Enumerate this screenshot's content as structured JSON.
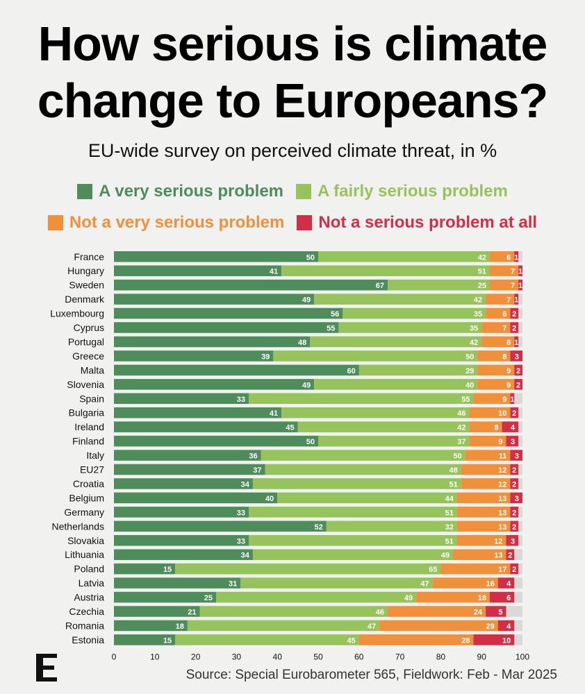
{
  "title_line1": "How serious is climate",
  "title_line2": "change to Europeans?",
  "subtitle": "EU-wide survey on perceived climate threat, in %",
  "legend": [
    {
      "label": "A very serious problem",
      "color": "#4e8c5c"
    },
    {
      "label": "A fairly serious problem",
      "color": "#96c35c"
    },
    {
      "label": "Not a very serious problem",
      "color": "#f0903a"
    },
    {
      "label": "Not a serious problem at all",
      "color": "#d22e47"
    }
  ],
  "source": "Source: Special Eurobarometer 565, Fieldwork: Feb - Mar 2025",
  "chart_data": {
    "type": "bar",
    "orientation": "horizontal",
    "stacked": true,
    "title": "How serious is climate change to Europeans?",
    "subtitle": "EU-wide survey on perceived climate threat, in %",
    "xlim": [
      0,
      100
    ],
    "xticks": [
      0,
      10,
      20,
      30,
      40,
      50,
      60,
      70,
      80,
      90,
      100
    ],
    "grid": false,
    "legend_position": "top",
    "categories": [
      "France",
      "Hungary",
      "Sweden",
      "Denmark",
      "Luxembourg",
      "Cyprus",
      "Portugal",
      "Greece",
      "Malta",
      "Slovenia",
      "Spain",
      "Bulgaria",
      "Ireland",
      "Finland",
      "Italy",
      "EU27",
      "Croatia",
      "Belgium",
      "Germany",
      "Netherlands",
      "Slovakia",
      "Lithuania",
      "Poland",
      "Latvia",
      "Austria",
      "Czechia",
      "Romania",
      "Estonia"
    ],
    "series": [
      {
        "name": "A very serious problem",
        "color": "#4e8c5c",
        "values": [
          50,
          41,
          67,
          49,
          56,
          55,
          48,
          39,
          60,
          49,
          33,
          41,
          45,
          50,
          36,
          37,
          34,
          40,
          33,
          52,
          33,
          34,
          15,
          31,
          25,
          21,
          18,
          15
        ]
      },
      {
        "name": "A fairly serious problem",
        "color": "#96c35c",
        "values": [
          42,
          51,
          25,
          42,
          35,
          35,
          42,
          50,
          29,
          40,
          55,
          46,
          42,
          37,
          50,
          48,
          51,
          44,
          51,
          32,
          51,
          49,
          65,
          47,
          49,
          46,
          47,
          45
        ]
      },
      {
        "name": "Not a very serious problem",
        "color": "#f0903a",
        "values": [
          6,
          7,
          7,
          7,
          6,
          7,
          8,
          8,
          9,
          9,
          9,
          10,
          8,
          9,
          11,
          12,
          12,
          13,
          13,
          13,
          12,
          13,
          17,
          16,
          18,
          24,
          29,
          28
        ]
      },
      {
        "name": "Not a serious problem at all",
        "color": "#d22e47",
        "values": [
          1,
          1,
          1,
          1,
          2,
          2,
          1,
          3,
          2,
          2,
          1,
          2,
          4,
          3,
          3,
          2,
          2,
          3,
          2,
          2,
          3,
          2,
          2,
          4,
          6,
          5,
          4,
          10
        ]
      }
    ],
    "remainder_color": "#d9d9d6"
  }
}
